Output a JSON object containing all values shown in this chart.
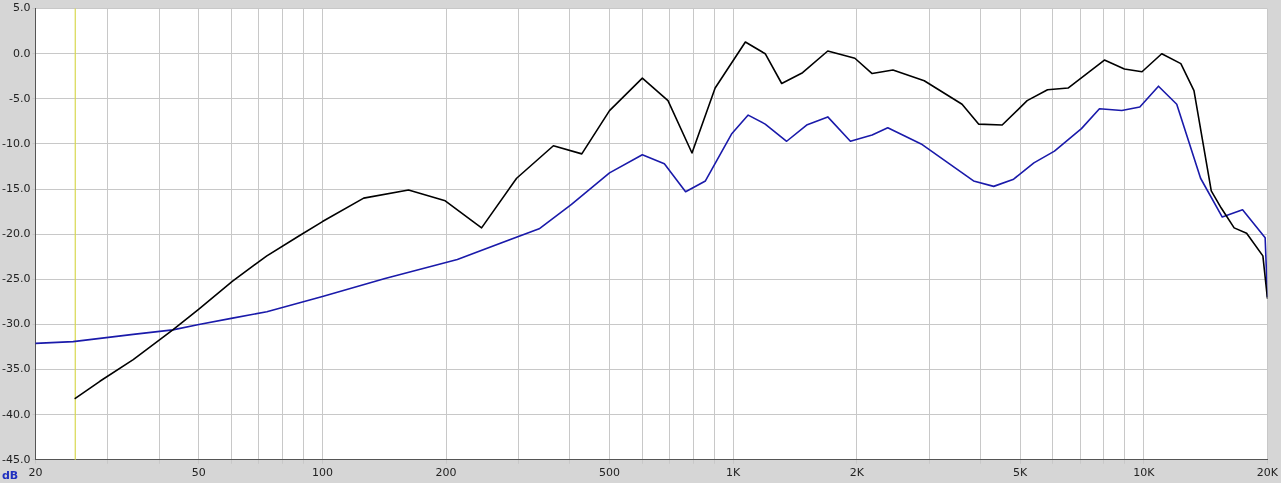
{
  "chart_data": {
    "type": "line",
    "ylabel": "dB",
    "xlim": [
      20,
      20000
    ],
    "ylim": [
      -45,
      5
    ],
    "log": "x",
    "grid": true,
    "legend": false,
    "marker": "none",
    "line_style": "solid",
    "xticks": [
      20,
      {
        "value": 30,
        "label": null
      },
      {
        "value": 40,
        "label": null
      },
      50,
      {
        "value": 60,
        "label": null
      },
      {
        "value": 70,
        "label": null
      },
      {
        "value": 80,
        "label": null
      },
      {
        "value": 90,
        "label": null
      },
      100,
      200,
      {
        "value": 300,
        "label": null
      },
      {
        "value": 400,
        "label": null
      },
      500,
      {
        "value": 600,
        "label": null
      },
      {
        "value": 700,
        "label": null
      },
      {
        "value": 800,
        "label": null
      },
      {
        "value": 900,
        "label": null
      },
      {
        "value": 1000,
        "label": "1K"
      },
      {
        "value": 2000,
        "label": "2K"
      },
      {
        "value": 3000,
        "label": null
      },
      {
        "value": 4000,
        "label": null
      },
      {
        "value": 5000,
        "label": "5K"
      },
      {
        "value": 6000,
        "label": null
      },
      {
        "value": 7000,
        "label": null
      },
      {
        "value": 8000,
        "label": null
      },
      {
        "value": 9000,
        "label": null
      },
      {
        "value": 10000,
        "label": "10K"
      },
      {
        "value": 20000,
        "label": "20K"
      }
    ],
    "yticks": [
      {
        "value": 5,
        "label": "5.0"
      },
      {
        "value": 0,
        "label": "0.0"
      },
      {
        "value": -5,
        "label": "-5.0"
      },
      {
        "value": -10,
        "label": "-10.0"
      },
      {
        "value": -15,
        "label": "-15.0"
      },
      {
        "value": -20,
        "label": "-20.0"
      },
      {
        "value": -25,
        "label": "-25.0"
      },
      {
        "value": -30,
        "label": "-30.0"
      },
      {
        "value": -35,
        "label": "-35.0"
      },
      {
        "value": -40,
        "label": "-40.0"
      },
      {
        "value": -45,
        "label": "-45.0"
      }
    ],
    "ref_lines": [
      {
        "axis": "x",
        "value": 25,
        "color": "#d8d850"
      }
    ],
    "series": [
      {
        "color": "#000000",
        "x": [
          25,
          28.7,
          34.6,
          43.2,
          50,
          60.4,
          73.2,
          87.6,
          100,
          126,
          162,
          199,
          244,
          297,
          365,
          428,
          500,
          601,
          694,
          794,
          904,
          1071,
          1197,
          1313,
          1476,
          1700,
          1979,
          2180,
          2450,
          2920,
          3610,
          3960,
          4520,
          5200,
          5830,
          6540,
          8020,
          8970,
          9900,
          11060,
          12310,
          13250,
          14600,
          15440,
          16600,
          17800,
          19500,
          20000
        ],
        "values": [
          -38.2,
          -36.3,
          -33.9,
          -30.6,
          -28.3,
          -25.2,
          -22.4,
          -20.2,
          -18.6,
          -16.0,
          -15.1,
          -16.3,
          -19.3,
          -13.8,
          -10.2,
          -11.1,
          -6.3,
          -2.7,
          -5.2,
          -11.0,
          -3.8,
          1.3,
          0.0,
          -3.3,
          -2.1,
          0.3,
          -0.5,
          -2.2,
          -1.8,
          -3.0,
          -5.6,
          -7.8,
          -7.9,
          -5.2,
          -4.0,
          -3.8,
          -0.7,
          -1.7,
          -2.0,
          0.0,
          -1.1,
          -4.1,
          -15.2,
          -17.1,
          -19.3,
          -19.9,
          -22.4,
          -27.1
        ]
      },
      {
        "color": "#1a1aaa",
        "x": [
          20,
          24.7,
          34.6,
          43.2,
          50,
          60.4,
          73.2,
          100,
          142,
          213,
          337,
          404,
          500,
          601,
          680,
          766,
          856,
          991,
          1088,
          1197,
          1350,
          1510,
          1700,
          1930,
          2180,
          2380,
          2870,
          3850,
          4310,
          4820,
          5400,
          6060,
          7050,
          7800,
          8840,
          9780,
          10860,
          12030,
          13750,
          15530,
          17400,
          19750,
          20000
        ],
        "values": [
          -32.1,
          -31.9,
          -31.1,
          -30.6,
          -30.0,
          -29.3,
          -28.6,
          -26.9,
          -24.9,
          -22.8,
          -19.4,
          -16.7,
          -13.2,
          -11.2,
          -12.2,
          -15.3,
          -14.1,
          -8.9,
          -6.8,
          -7.8,
          -9.7,
          -7.9,
          -7.0,
          -9.7,
          -9.0,
          -8.2,
          -10.0,
          -14.1,
          -14.7,
          -13.9,
          -12.1,
          -10.8,
          -8.3,
          -6.1,
          -6.3,
          -5.9,
          -3.6,
          -5.6,
          -13.8,
          -18.1,
          -17.3,
          -20.4,
          -26.9
        ]
      }
    ]
  }
}
